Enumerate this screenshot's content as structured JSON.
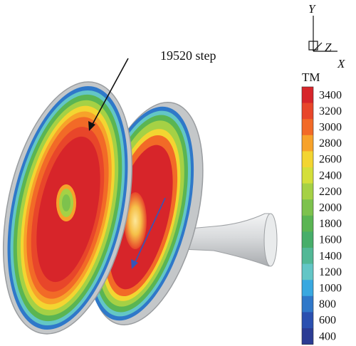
{
  "annotation": {
    "step_label": "19520 step"
  },
  "axes": {
    "x": "X",
    "y": "Y",
    "z": "Z"
  },
  "legend": {
    "title": "TM",
    "ticks": [
      "3400",
      "3200",
      "3000",
      "2800",
      "2600",
      "2400",
      "2200",
      "2000",
      "1800",
      "1600",
      "1400",
      "1200",
      "1000",
      "800",
      "600",
      "400"
    ],
    "colors": [
      "#d7252a",
      "#e8462a",
      "#f26a27",
      "#f7a22a",
      "#f3d531",
      "#d4df3a",
      "#a5d145",
      "#7dc24d",
      "#5ab553",
      "#47ae6a",
      "#52b896",
      "#63c6c6",
      "#39a8e0",
      "#2f78c9",
      "#2a50b0",
      "#2b3c94"
    ]
  },
  "colors": {
    "hot": "#d7252a",
    "warm": "#f26a27",
    "mid": "#7dc24d",
    "cool": "#2f78c9",
    "shell": "#cfd2d4",
    "arrow_black": "#111111",
    "arrow_blue": "#3556b8"
  }
}
